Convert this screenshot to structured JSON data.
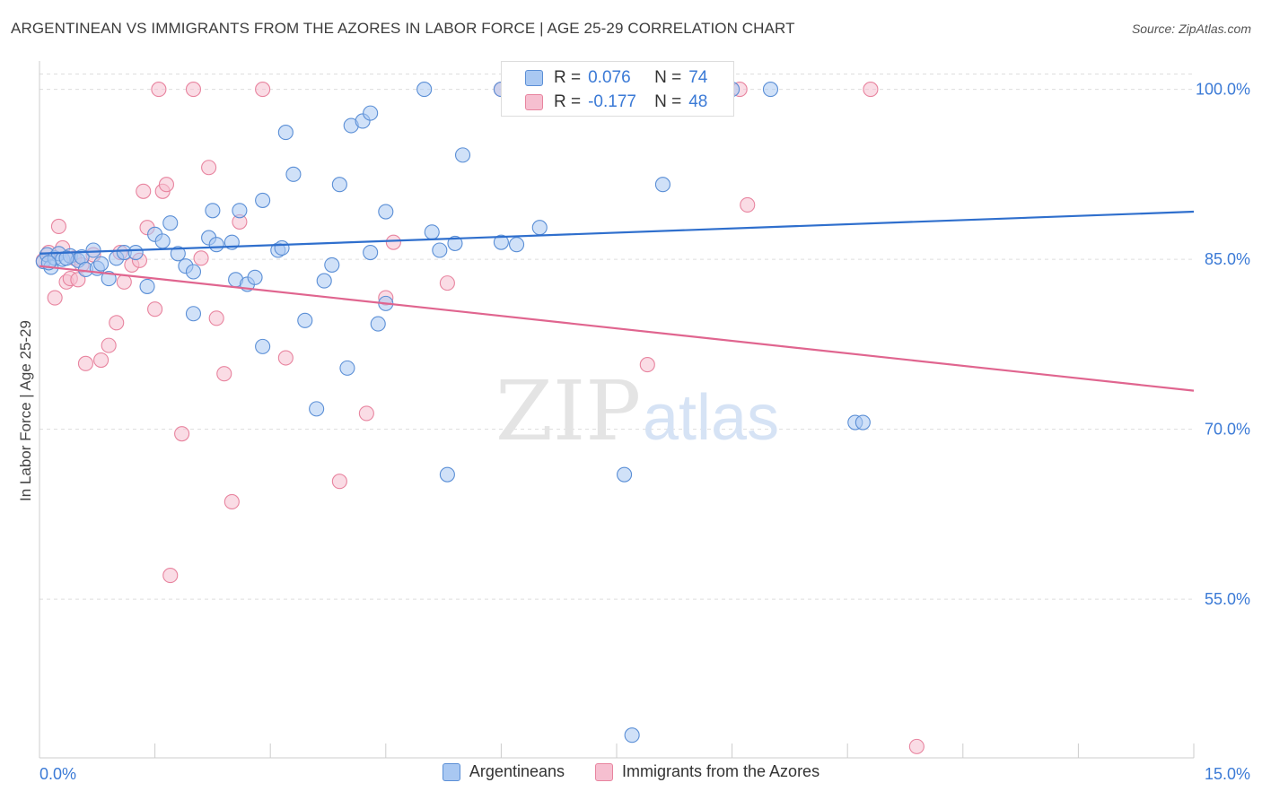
{
  "title": "ARGENTINEAN VS IMMIGRANTS FROM THE AZORES IN LABOR FORCE | AGE 25-29 CORRELATION CHART",
  "source": "Source: ZipAtlas.com",
  "watermark": {
    "zip": "ZIP",
    "atlas": "atlas"
  },
  "legend_box": {
    "rows": [
      {
        "r_label": "R =",
        "r_value": "0.076",
        "n_label": "N =",
        "n_value": "74"
      },
      {
        "r_label": "R =",
        "r_value": "-0.177",
        "n_label": "N =",
        "n_value": "48"
      }
    ]
  },
  "bottom_legend": [
    "Argentineans",
    "Immigrants from the Azores"
  ],
  "colors": {
    "blue_fill": "#a9c8f2",
    "blue_stroke": "#5b8fd6",
    "blue_line": "#2f6fcd",
    "pink_fill": "#f6bfd0",
    "pink_stroke": "#e8849f",
    "pink_line": "#e0658f",
    "axis_label": "#3b7ad6",
    "grid": "#dddddd"
  },
  "chart_data": {
    "type": "scatter",
    "title": "ARGENTINEAN VS IMMIGRANTS FROM THE AZORES IN LABOR FORCE | AGE 25-29 CORRELATION CHART",
    "xlabel": "",
    "ylabel": "In Labor Force | Age 25-29",
    "xlim": [
      0,
      15
    ],
    "ylim": [
      41,
      102.5
    ],
    "x_tick_labels": [
      {
        "value": 0,
        "label": "0.0%"
      },
      {
        "value": 15,
        "label": "15.0%"
      }
    ],
    "y_tick_labels": [
      {
        "value": 100,
        "label": "100.0%"
      },
      {
        "value": 85,
        "label": "85.0%"
      },
      {
        "value": 70,
        "label": "70.0%"
      },
      {
        "value": 55,
        "label": "55.0%"
      }
    ],
    "grid": true,
    "legend_position": "bottom",
    "series": [
      {
        "name": "Argentineans",
        "r": 0.076,
        "n": 74,
        "trend": {
          "x": [
            0,
            15
          ],
          "y": [
            85.5,
            89.2
          ]
        },
        "points": [
          [
            0.05,
            84.8
          ],
          [
            0.1,
            85.4
          ],
          [
            0.15,
            84.3
          ],
          [
            0.2,
            85.1
          ],
          [
            0.25,
            85.5
          ],
          [
            0.3,
            85.0
          ],
          [
            0.4,
            85.3
          ],
          [
            0.5,
            84.9
          ],
          [
            0.55,
            85.2
          ],
          [
            0.6,
            84.1
          ],
          [
            0.7,
            85.8
          ],
          [
            0.75,
            84.2
          ],
          [
            0.8,
            84.6
          ],
          [
            0.9,
            83.3
          ],
          [
            1.0,
            85.1
          ],
          [
            1.1,
            85.6
          ],
          [
            1.4,
            82.6
          ],
          [
            1.5,
            87.2
          ],
          [
            1.6,
            86.6
          ],
          [
            1.7,
            88.2
          ],
          [
            1.8,
            85.5
          ],
          [
            1.9,
            84.4
          ],
          [
            2.0,
            83.9
          ],
          [
            2.0,
            80.2
          ],
          [
            2.2,
            86.9
          ],
          [
            2.25,
            89.3
          ],
          [
            2.3,
            86.3
          ],
          [
            2.5,
            86.5
          ],
          [
            2.55,
            83.2
          ],
          [
            2.6,
            89.3
          ],
          [
            2.7,
            82.8
          ],
          [
            2.8,
            83.4
          ],
          [
            2.9,
            90.2
          ],
          [
            2.9,
            77.3
          ],
          [
            3.1,
            85.8
          ],
          [
            3.15,
            86.0
          ],
          [
            3.2,
            96.2
          ],
          [
            3.3,
            92.5
          ],
          [
            3.45,
            79.6
          ],
          [
            3.6,
            71.8
          ],
          [
            3.7,
            83.1
          ],
          [
            3.8,
            84.5
          ],
          [
            3.9,
            91.6
          ],
          [
            4.0,
            75.4
          ],
          [
            4.05,
            96.8
          ],
          [
            4.2,
            97.2
          ],
          [
            4.3,
            97.9
          ],
          [
            4.3,
            85.6
          ],
          [
            4.4,
            79.3
          ],
          [
            4.5,
            89.2
          ],
          [
            4.5,
            81.1
          ],
          [
            5.0,
            100.0
          ],
          [
            5.1,
            87.4
          ],
          [
            5.2,
            85.8
          ],
          [
            5.3,
            66.0
          ],
          [
            5.4,
            86.4
          ],
          [
            5.5,
            94.2
          ],
          [
            6.0,
            86.5
          ],
          [
            6.0,
            100.0
          ],
          [
            6.2,
            86.3
          ],
          [
            6.5,
            87.8
          ],
          [
            6.5,
            100.0
          ],
          [
            7.6,
            66.0
          ],
          [
            7.7,
            43.0
          ],
          [
            8.1,
            91.6
          ],
          [
            8.2,
            100.0
          ],
          [
            8.7,
            100.0
          ],
          [
            9.0,
            100.0
          ],
          [
            9.5,
            100.0
          ],
          [
            10.6,
            70.6
          ],
          [
            10.7,
            70.6
          ],
          [
            0.12,
            84.7
          ],
          [
            0.35,
            85.1
          ],
          [
            1.25,
            85.6
          ]
        ]
      },
      {
        "name": "Immigrants from the Azores",
        "r": -0.177,
        "n": 48,
        "trend": {
          "x": [
            0,
            15
          ],
          "y": [
            84.4,
            73.4
          ]
        },
        "points": [
          [
            0.05,
            84.9
          ],
          [
            0.12,
            85.6
          ],
          [
            0.2,
            81.6
          ],
          [
            0.25,
            87.9
          ],
          [
            0.3,
            86.0
          ],
          [
            0.35,
            83.0
          ],
          [
            0.4,
            83.3
          ],
          [
            0.45,
            85.1
          ],
          [
            0.5,
            83.2
          ],
          [
            0.55,
            84.5
          ],
          [
            0.6,
            75.8
          ],
          [
            0.7,
            85.4
          ],
          [
            0.8,
            76.1
          ],
          [
            0.9,
            77.4
          ],
          [
            1.0,
            79.4
          ],
          [
            1.05,
            85.6
          ],
          [
            1.1,
            83.0
          ],
          [
            1.2,
            84.5
          ],
          [
            1.3,
            84.9
          ],
          [
            1.35,
            91.0
          ],
          [
            1.4,
            87.8
          ],
          [
            1.5,
            80.6
          ],
          [
            1.55,
            100.0
          ],
          [
            1.6,
            91.0
          ],
          [
            1.65,
            91.6
          ],
          [
            1.7,
            57.1
          ],
          [
            1.85,
            69.6
          ],
          [
            2.0,
            100.0
          ],
          [
            2.1,
            85.1
          ],
          [
            2.2,
            93.1
          ],
          [
            2.3,
            79.8
          ],
          [
            2.4,
            74.9
          ],
          [
            2.5,
            63.6
          ],
          [
            2.6,
            88.3
          ],
          [
            2.9,
            100.0
          ],
          [
            3.2,
            76.3
          ],
          [
            3.9,
            65.4
          ],
          [
            4.25,
            71.4
          ],
          [
            4.5,
            81.6
          ],
          [
            4.6,
            86.5
          ],
          [
            5.3,
            82.9
          ],
          [
            6.0,
            100.0
          ],
          [
            7.5,
            100.0
          ],
          [
            7.9,
            75.7
          ],
          [
            9.1,
            100.0
          ],
          [
            9.2,
            89.8
          ],
          [
            10.8,
            100.0
          ],
          [
            11.4,
            42.0
          ]
        ]
      }
    ]
  }
}
